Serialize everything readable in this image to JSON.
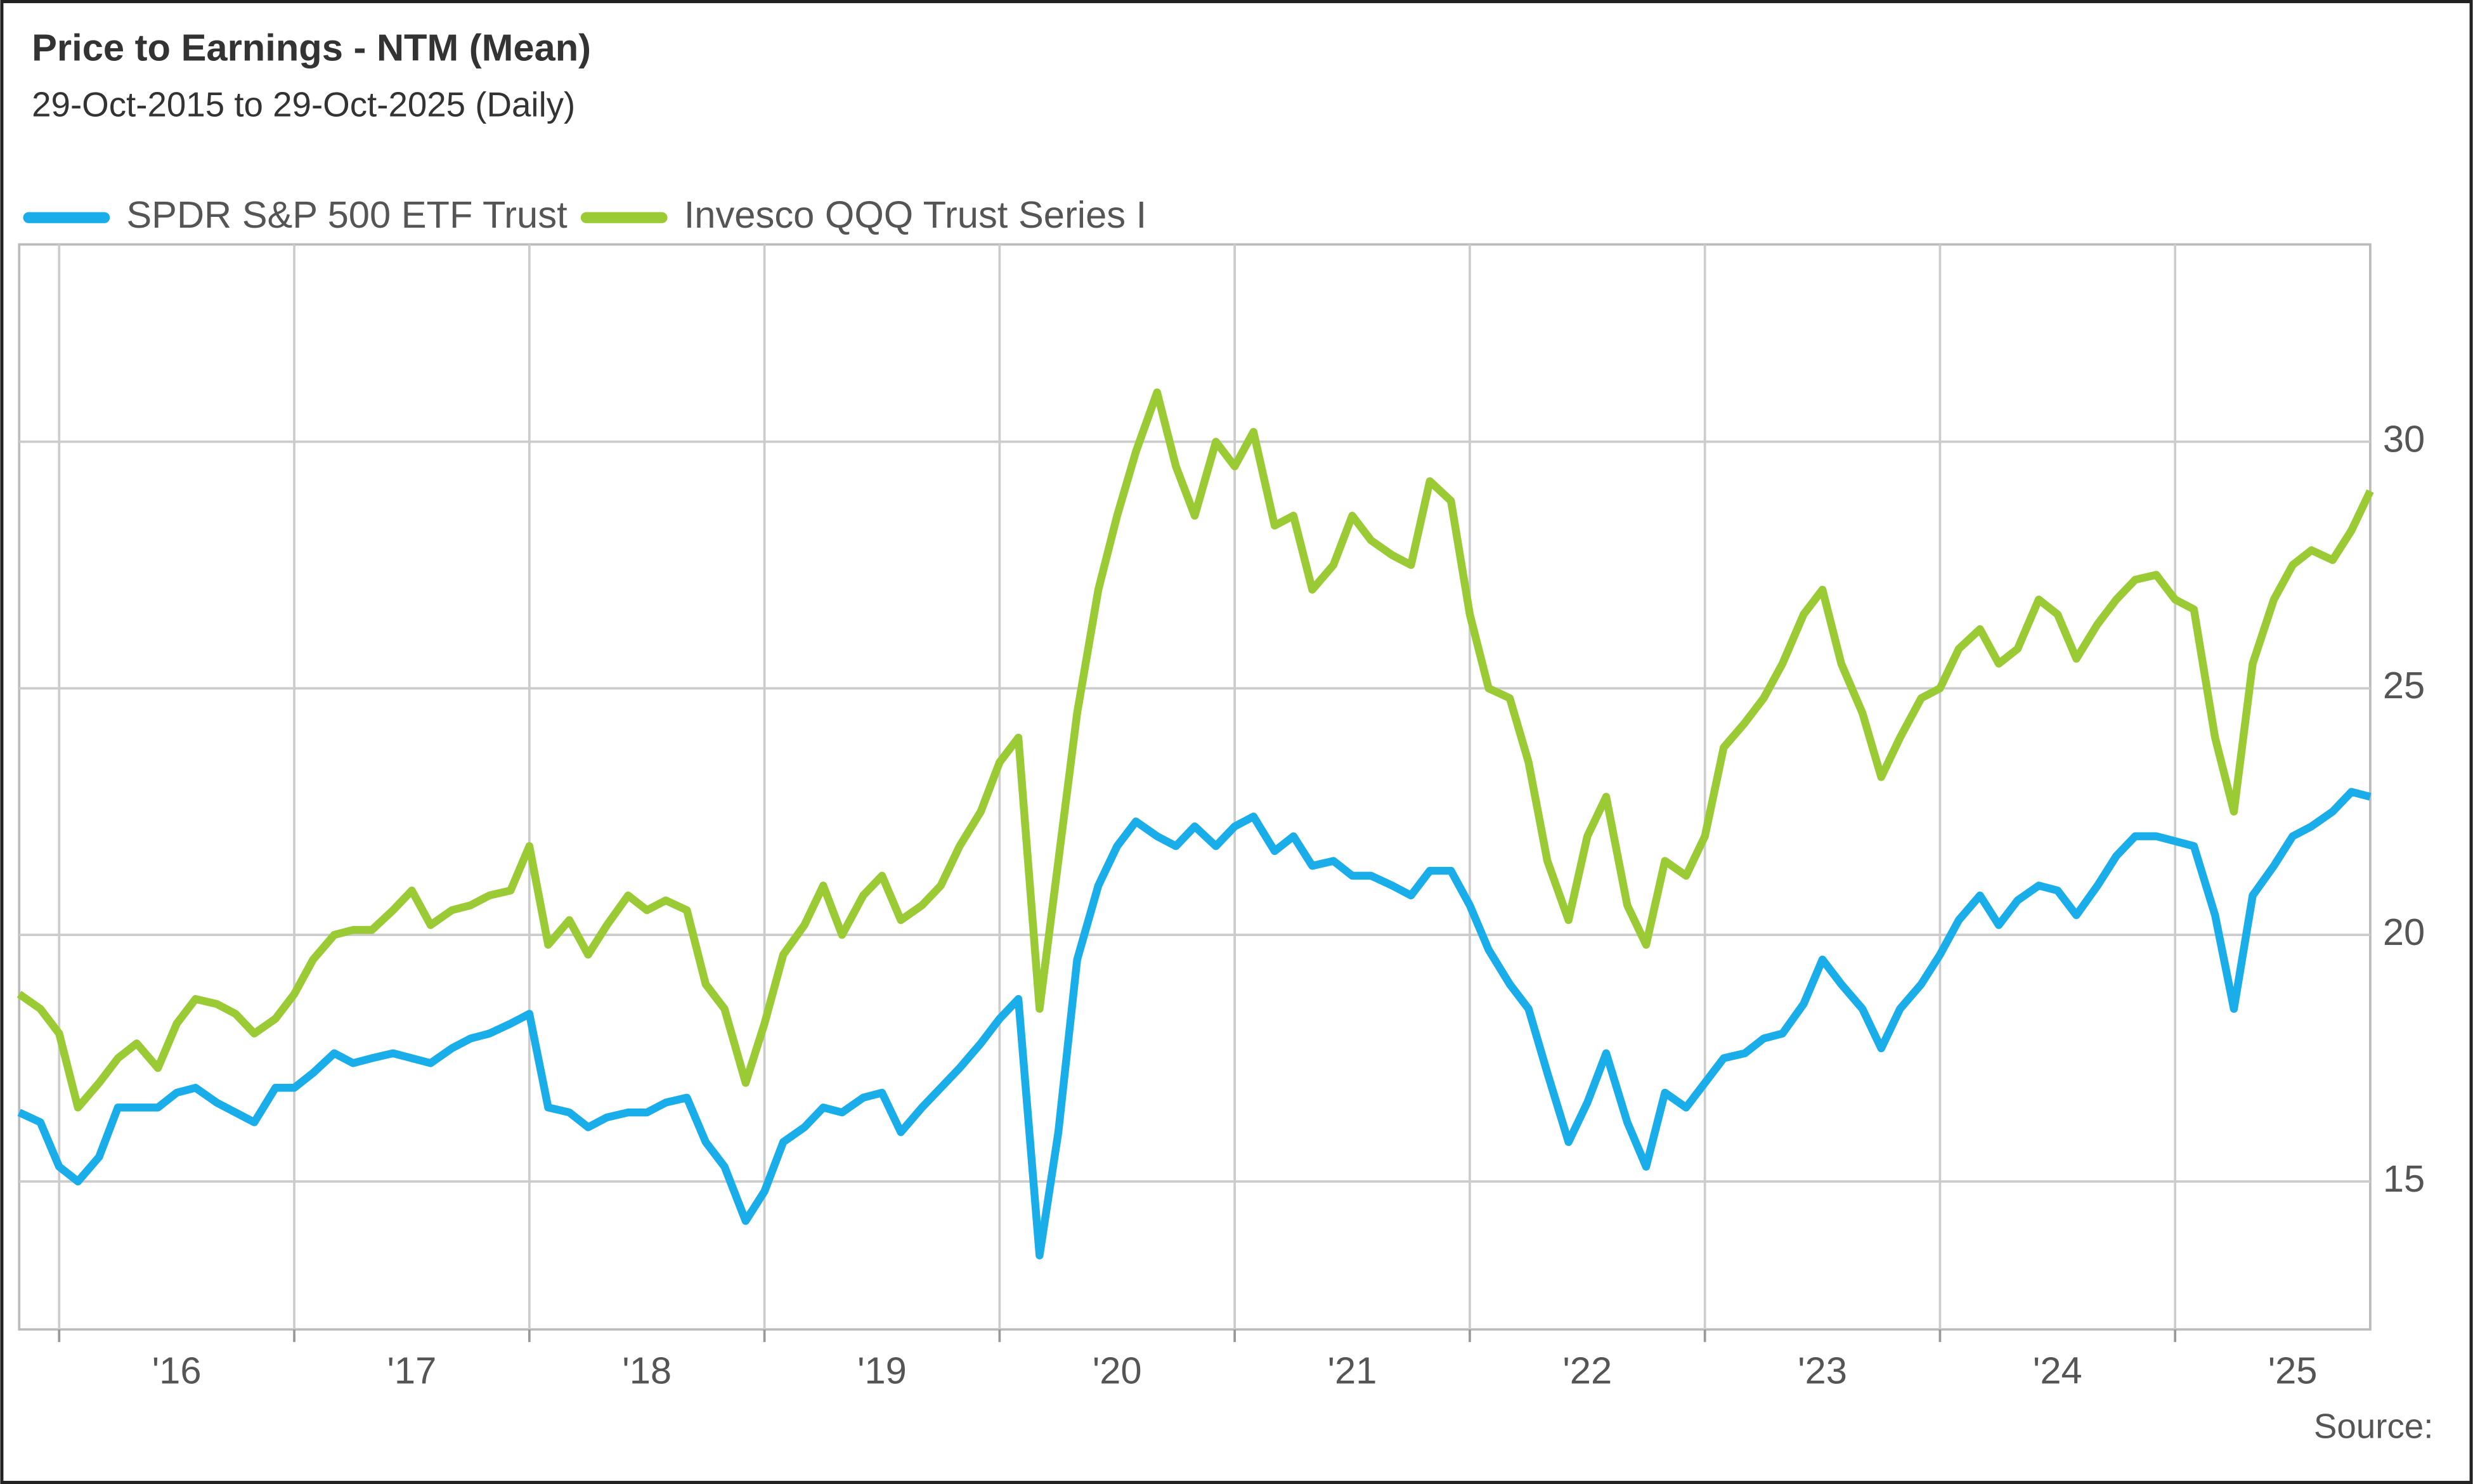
{
  "chart_data": {
    "type": "line",
    "title": "Price to Earnings - NTM (Mean)",
    "subtitle": "29-Oct-2015 to 29-Oct-2025 (Daily)",
    "source": "Source:",
    "x": [
      2015.83,
      2015.92,
      2016.0,
      2016.08,
      2016.17,
      2016.25,
      2016.33,
      2016.42,
      2016.5,
      2016.58,
      2016.67,
      2016.75,
      2016.83,
      2016.92,
      2017.0,
      2017.08,
      2017.17,
      2017.25,
      2017.33,
      2017.42,
      2017.5,
      2017.58,
      2017.67,
      2017.75,
      2017.83,
      2017.92,
      2018.0,
      2018.08,
      2018.17,
      2018.25,
      2018.33,
      2018.42,
      2018.5,
      2018.58,
      2018.67,
      2018.75,
      2018.83,
      2018.92,
      2019.0,
      2019.08,
      2019.17,
      2019.25,
      2019.33,
      2019.42,
      2019.5,
      2019.58,
      2019.67,
      2019.75,
      2019.83,
      2019.92,
      2020.0,
      2020.08,
      2020.17,
      2020.25,
      2020.33,
      2020.42,
      2020.5,
      2020.58,
      2020.67,
      2020.75,
      2020.83,
      2020.92,
      2021.0,
      2021.08,
      2021.17,
      2021.25,
      2021.33,
      2021.42,
      2021.5,
      2021.58,
      2021.67,
      2021.75,
      2021.83,
      2021.92,
      2022.0,
      2022.08,
      2022.17,
      2022.25,
      2022.33,
      2022.42,
      2022.5,
      2022.58,
      2022.67,
      2022.75,
      2022.83,
      2022.92,
      2023.0,
      2023.08,
      2023.17,
      2023.25,
      2023.33,
      2023.42,
      2023.5,
      2023.58,
      2023.67,
      2023.75,
      2023.83,
      2023.92,
      2024.0,
      2024.08,
      2024.17,
      2024.25,
      2024.33,
      2024.42,
      2024.5,
      2024.58,
      2024.67,
      2024.75,
      2024.83,
      2024.92,
      2025.0,
      2025.08,
      2025.17,
      2025.25,
      2025.33,
      2025.42,
      2025.5,
      2025.58,
      2025.67,
      2025.75,
      2025.83
    ],
    "series": [
      {
        "name": "SPDR S&P 500 ETF Trust",
        "color": "#19aeea",
        "values": [
          16.4,
          16.2,
          15.3,
          15.0,
          15.5,
          16.5,
          16.5,
          16.5,
          16.8,
          16.9,
          16.6,
          16.4,
          16.2,
          16.9,
          16.9,
          17.2,
          17.6,
          17.4,
          17.5,
          17.6,
          17.5,
          17.4,
          17.7,
          17.9,
          18.0,
          18.2,
          18.4,
          16.5,
          16.4,
          16.1,
          16.3,
          16.4,
          16.4,
          16.6,
          16.7,
          15.8,
          15.3,
          14.2,
          14.8,
          15.8,
          16.1,
          16.5,
          16.4,
          16.7,
          16.8,
          16.0,
          16.5,
          16.9,
          17.3,
          17.8,
          18.3,
          18.7,
          13.5,
          16.0,
          19.5,
          21.0,
          21.8,
          22.3,
          22.0,
          21.8,
          22.2,
          21.8,
          22.2,
          22.4,
          21.7,
          22.0,
          21.4,
          21.5,
          21.2,
          21.2,
          21.0,
          20.8,
          21.3,
          21.3,
          20.6,
          19.7,
          19.0,
          18.5,
          17.2,
          15.8,
          16.6,
          17.6,
          16.2,
          15.3,
          16.8,
          16.5,
          17.0,
          17.5,
          17.6,
          17.9,
          18.0,
          18.6,
          19.5,
          19.0,
          18.5,
          17.7,
          18.5,
          19.0,
          19.6,
          20.3,
          20.8,
          20.2,
          20.7,
          21.0,
          20.9,
          20.4,
          21.0,
          21.6,
          22.0,
          22.0,
          21.9,
          21.8,
          20.4,
          18.5,
          20.8,
          21.4,
          22.0,
          22.2,
          22.5,
          22.9,
          22.8
        ]
      },
      {
        "name": "Invesco QQQ Trust Series I",
        "color": "#9acb34",
        "values": [
          18.8,
          18.5,
          18.0,
          16.5,
          17.0,
          17.5,
          17.8,
          17.3,
          18.2,
          18.7,
          18.6,
          18.4,
          18.0,
          18.3,
          18.8,
          19.5,
          20.0,
          20.1,
          20.1,
          20.5,
          20.9,
          20.2,
          20.5,
          20.6,
          20.8,
          20.9,
          21.8,
          19.8,
          20.3,
          19.6,
          20.2,
          20.8,
          20.5,
          20.7,
          20.5,
          19.0,
          18.5,
          17.0,
          18.2,
          19.6,
          20.2,
          21.0,
          20.0,
          20.8,
          21.2,
          20.3,
          20.6,
          21.0,
          21.8,
          22.5,
          23.5,
          24.0,
          18.5,
          21.5,
          24.5,
          27.0,
          28.5,
          29.8,
          31.0,
          29.5,
          28.5,
          30.0,
          29.5,
          30.2,
          28.3,
          28.5,
          27.0,
          27.5,
          28.5,
          28.0,
          27.7,
          27.5,
          29.2,
          28.8,
          26.5,
          25.0,
          24.8,
          23.5,
          21.5,
          20.3,
          22.0,
          22.8,
          20.6,
          19.8,
          21.5,
          21.2,
          22.0,
          23.8,
          24.3,
          24.8,
          25.5,
          26.5,
          27.0,
          25.5,
          24.5,
          23.2,
          24.0,
          24.8,
          25.0,
          25.8,
          26.2,
          25.5,
          25.8,
          26.8,
          26.5,
          25.6,
          26.3,
          26.8,
          27.2,
          27.3,
          26.8,
          26.6,
          24.0,
          22.5,
          25.5,
          26.8,
          27.5,
          27.8,
          27.6,
          28.2,
          29.0
        ]
      }
    ],
    "xlim": [
      2015.83,
      2025.83
    ],
    "xticks": [
      {
        "value": 2016,
        "label": "'16"
      },
      {
        "value": 2017,
        "label": "'17"
      },
      {
        "value": 2018,
        "label": "'18"
      },
      {
        "value": 2019,
        "label": "'19"
      },
      {
        "value": 2020,
        "label": "'20"
      },
      {
        "value": 2021,
        "label": "'21"
      },
      {
        "value": 2022,
        "label": "'22"
      },
      {
        "value": 2023,
        "label": "'23"
      },
      {
        "value": 2024,
        "label": "'24"
      },
      {
        "value": 2025,
        "label": "'25"
      }
    ],
    "ylim": [
      12,
      34
    ],
    "yticks": [
      15,
      20,
      25,
      30
    ],
    "grid": true,
    "legend": "top-left"
  }
}
